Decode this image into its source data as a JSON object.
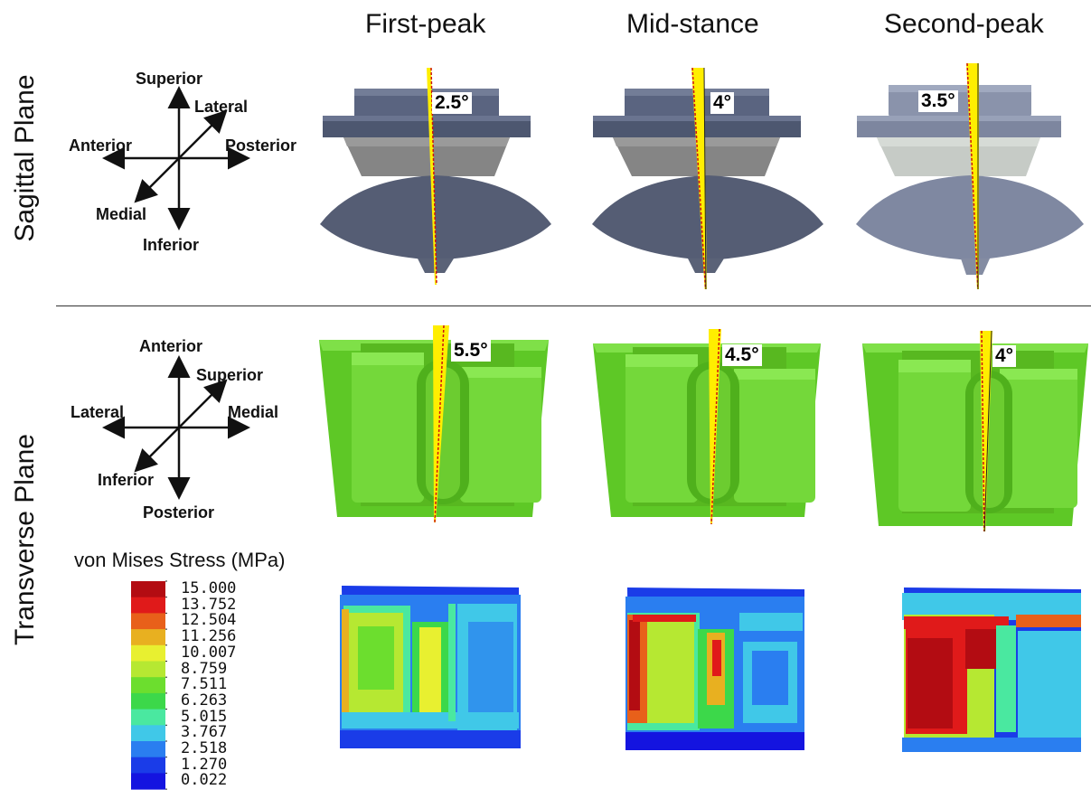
{
  "columns": [
    {
      "title": "First-peak"
    },
    {
      "title": "Mid-stance"
    },
    {
      "title": "Second-peak"
    }
  ],
  "rows": {
    "sagittal": {
      "title": "Sagittal Plane",
      "axes": {
        "up": "Superior",
        "down": "Inferior",
        "left": "Anterior",
        "right": "Posterior",
        "diag_up": "Lateral",
        "diag_down": "Medial"
      },
      "angles": [
        "2.5°",
        "4°",
        "3.5°"
      ]
    },
    "transverse": {
      "title": "Transverse Plane",
      "axes": {
        "up": "Anterior",
        "down": "Posterior",
        "left": "Lateral",
        "right": "Medial",
        "diag_up": "Superior",
        "diag_down": "Inferior"
      },
      "angles": [
        "5.5°",
        "4.5°",
        "4°"
      ]
    }
  },
  "legend": {
    "title": "von Mises Stress (MPa)",
    "values": [
      "15.000",
      "13.752",
      "12.504",
      "11.256",
      "10.007",
      "8.759",
      "7.511",
      "6.263",
      "5.015",
      "3.767",
      "2.518",
      "1.270",
      "0.022"
    ],
    "colors": [
      "#b30c12",
      "#e01a1a",
      "#e8601a",
      "#e8b020",
      "#e8f030",
      "#b6e832",
      "#6cde2e",
      "#3cd84a",
      "#4ae8a0",
      "#40c8e8",
      "#2a7ef0",
      "#1a3ce8",
      "#1414e0"
    ]
  },
  "colors": {
    "implant_dark": "#4d5770",
    "implant_mid": "#6e768c",
    "tibial_grey": "#8a8a8a",
    "insert_green": "#62d028",
    "wedge_yellow": "#ffee00"
  }
}
